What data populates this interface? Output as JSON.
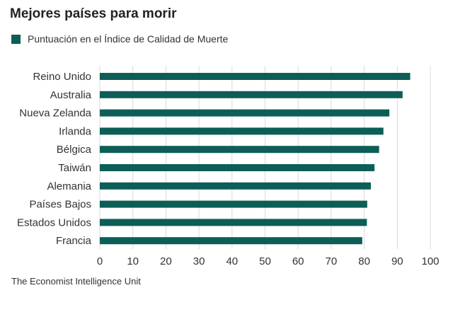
{
  "chart_data": {
    "type": "bar",
    "orientation": "horizontal",
    "title": "Mejores países para morir",
    "series": [
      {
        "name": "Puntuación en el Índice de Calidad de Muerte",
        "color": "#0d5e57",
        "values": [
          93.9,
          91.6,
          87.6,
          85.8,
          84.5,
          83.1,
          82.0,
          80.9,
          80.8,
          79.4
        ]
      }
    ],
    "categories": [
      "Reino Unido",
      "Australia",
      "Nueva Zelanda",
      "Irlanda",
      "Bélgica",
      "Taiwán",
      "Alemania",
      "Países Bajos",
      "Estados Unidos",
      "Francia"
    ],
    "xlim": [
      0,
      100
    ],
    "xticks": [
      0,
      10,
      20,
      30,
      40,
      50,
      60,
      70,
      80,
      90,
      100
    ],
    "grid": true,
    "legend_position": "top-left",
    "source": "The Economist Intelligence Unit"
  }
}
